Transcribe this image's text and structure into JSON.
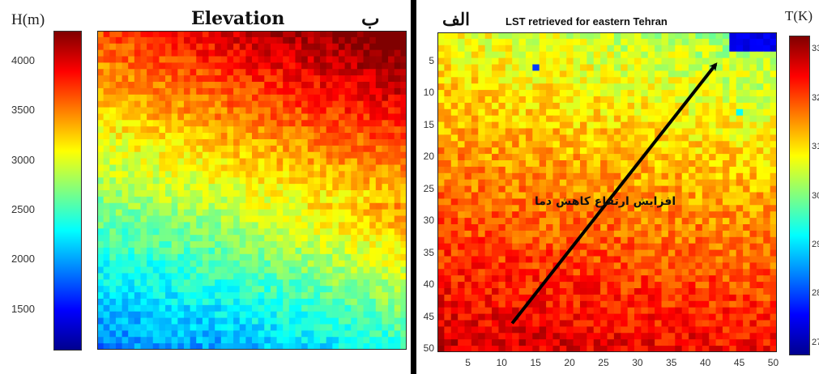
{
  "chart_data": [
    {
      "type": "heatmap",
      "title": "Elevation",
      "panel_label": "ب",
      "colorbar_label": "H(m)",
      "colorbar_ticks": [
        "4000",
        "3500",
        "3000",
        "2500",
        "2000",
        "1500"
      ],
      "colorbar_range": [
        1100,
        4300
      ],
      "colormap": "jet",
      "grid_size": [
        50,
        50
      ],
      "description_of_field": "high elevation toward top-right, low toward bottom-left"
    },
    {
      "type": "heatmap",
      "title": "LST retrieved for eastern Tehran",
      "panel_label": "الف",
      "colorbar_label": "T(K)",
      "colorbar_ticks": [
        "33",
        "32",
        "31",
        "30",
        "29",
        "28",
        "27"
      ],
      "colorbar_range": [
        268,
        333
      ],
      "colormap": "jet",
      "x_ticks": [
        "5",
        "10",
        "15",
        "20",
        "25",
        "30",
        "35",
        "40",
        "45",
        "50"
      ],
      "y_ticks": [
        "5",
        "10",
        "15",
        "20",
        "25",
        "30",
        "35",
        "40",
        "45",
        "50"
      ],
      "xlim": [
        0.5,
        50.5
      ],
      "ylim": [
        0.5,
        50.5
      ],
      "annotation": "افزایش ارتفاع      کاهش دما",
      "arrow": {
        "from": [
          11.5,
          46
        ],
        "to": [
          41.5,
          5.5
        ]
      }
    }
  ]
}
